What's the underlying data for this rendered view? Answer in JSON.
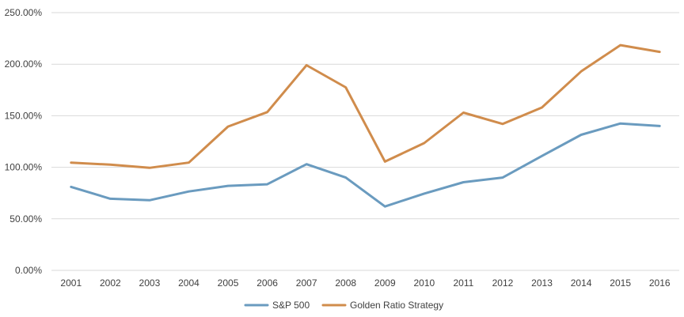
{
  "chart_data": {
    "type": "line",
    "title": "",
    "xlabel": "",
    "ylabel": "",
    "x": [
      "2001",
      "2002",
      "2003",
      "2004",
      "2005",
      "2006",
      "2007",
      "2008",
      "2009",
      "2010",
      "2011",
      "2012",
      "2013",
      "2014",
      "2015",
      "2016"
    ],
    "y_ticks": [
      "0.00%",
      "50.00%",
      "100.00%",
      "150.00%",
      "200.00%",
      "250.00%"
    ],
    "ylim": [
      0,
      250
    ],
    "grid": true,
    "legend_position": "bottom",
    "series": [
      {
        "name": "S&P 500",
        "color": "#6a9bbf",
        "values": [
          81,
          69.5,
          68,
          76.5,
          82,
          83.5,
          103,
          90,
          62,
          74.5,
          85.5,
          90,
          111,
          131.5,
          142.5,
          140
        ]
      },
      {
        "name": "Golden Ratio Strategy",
        "color": "#d08c4c",
        "values": [
          104.5,
          102.5,
          99.5,
          104.5,
          139.5,
          153.5,
          199,
          177.5,
          105.5,
          123.5,
          153,
          142,
          158,
          193,
          218.5,
          212
        ]
      }
    ]
  }
}
